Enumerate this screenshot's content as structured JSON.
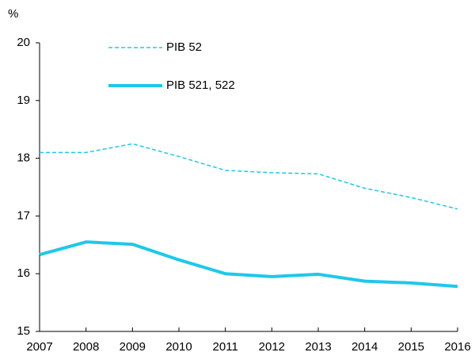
{
  "chart_data": {
    "type": "line",
    "y_label": "%",
    "x": [
      2007,
      2008,
      2009,
      2010,
      2011,
      2012,
      2013,
      2014,
      2015,
      2016
    ],
    "xlim": [
      2007,
      2016
    ],
    "xticks": [
      2007,
      2008,
      2009,
      2010,
      2011,
      2012,
      2013,
      2014,
      2015,
      2016
    ],
    "ylim": [
      15,
      20
    ],
    "yticks": [
      15,
      16,
      17,
      18,
      19,
      20
    ],
    "grid": false,
    "legend": "upper left",
    "series": [
      {
        "name": "PIB 52",
        "color": "#1ec8ea",
        "style": "dashed",
        "values": [
          18.1,
          18.1,
          18.25,
          18.03,
          17.79,
          17.75,
          17.73,
          17.48,
          17.32,
          17.12
        ]
      },
      {
        "name": "PIB 521, 522",
        "color": "#1ec8ea",
        "style": "solid",
        "values": [
          16.33,
          16.55,
          16.51,
          16.24,
          16.0,
          15.95,
          15.99,
          15.87,
          15.84,
          15.78
        ]
      }
    ]
  }
}
